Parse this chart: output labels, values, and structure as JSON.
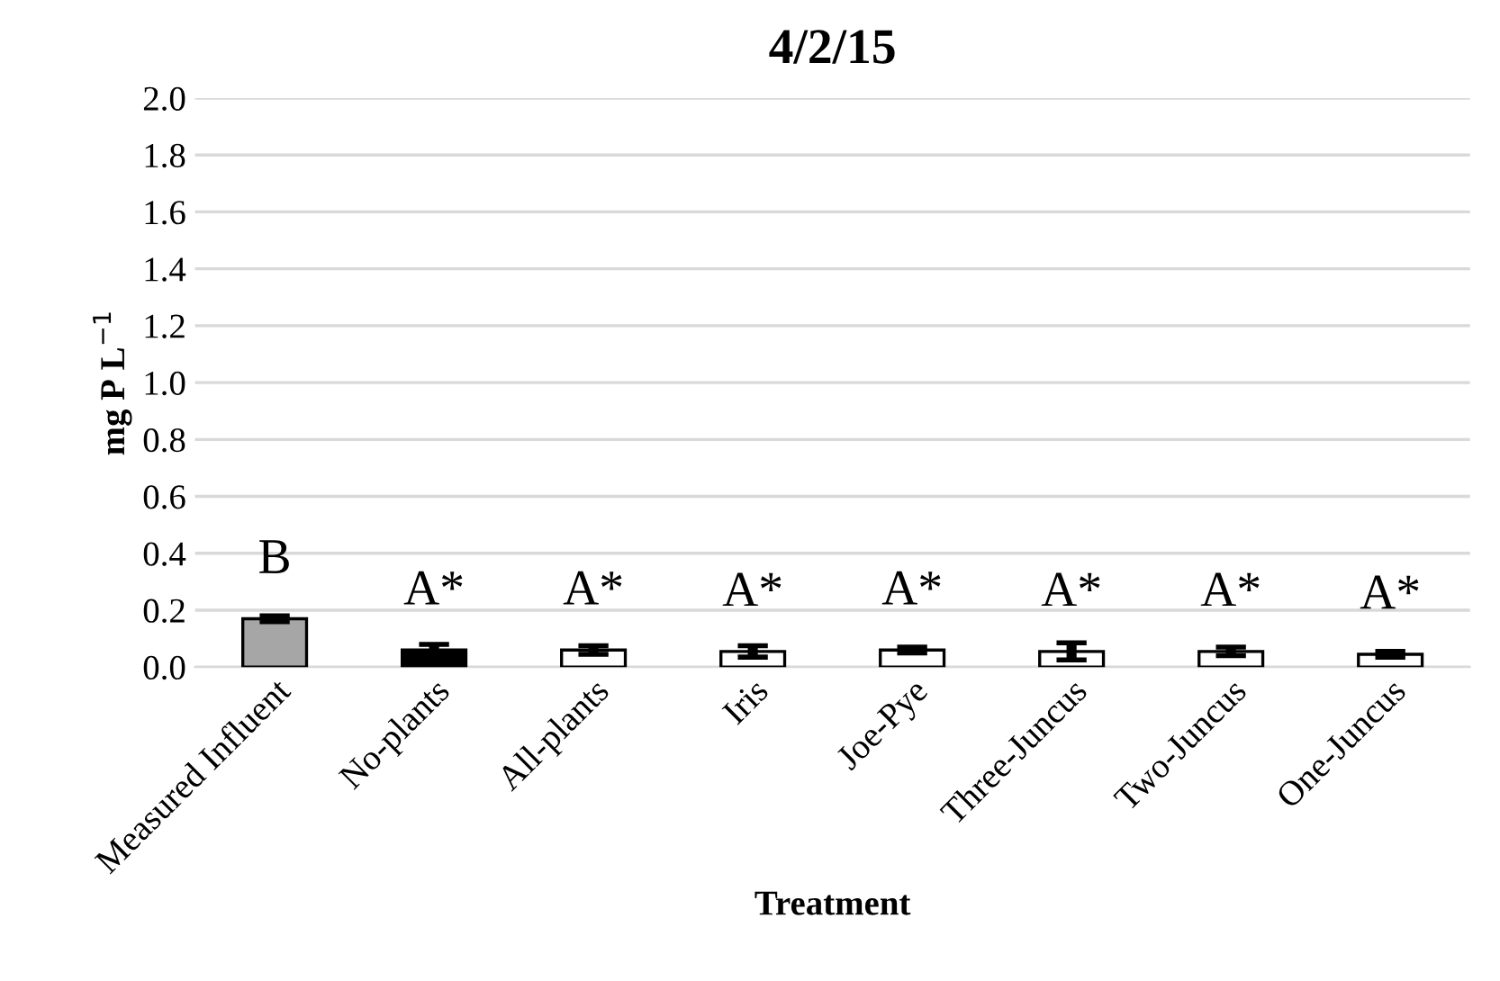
{
  "chart_data": {
    "type": "bar",
    "title": "4/2/15",
    "xlabel": "Treatment",
    "ylabel": "mg P L$^{−1}$",
    "categories": [
      "Measured Influent",
      "No-plants",
      "All-plants",
      "Iris",
      "Joe-Pye",
      "Three-Juncus",
      "Two-Juncus",
      "One-Juncus"
    ],
    "values": [
      0.17,
      0.06,
      0.06,
      0.055,
      0.06,
      0.055,
      0.055,
      0.045
    ],
    "errors": [
      0.01,
      0.02,
      0.015,
      0.02,
      0.01,
      0.03,
      0.015,
      0.01
    ],
    "colors": [
      "#a6a6a6",
      "#000000",
      "#ffffff",
      "#ffffff",
      "#ffffff",
      "#ffffff",
      "#ffffff",
      "#ffffff"
    ],
    "ylim": [
      0,
      2.0
    ],
    "yticks": [
      {
        "value": 0,
        "label": "0.0"
      },
      0.2,
      0.4,
      0.6,
      0.8,
      {
        "value": 1,
        "label": "1.0"
      },
      1.2,
      1.4,
      1.6,
      1.8,
      {
        "value": 2,
        "label": "2.0"
      }
    ],
    "grid": "y",
    "annotations": [
      "B",
      "A*",
      "A*",
      "A*",
      "A*",
      "A*",
      "A*",
      "A*"
    ]
  }
}
